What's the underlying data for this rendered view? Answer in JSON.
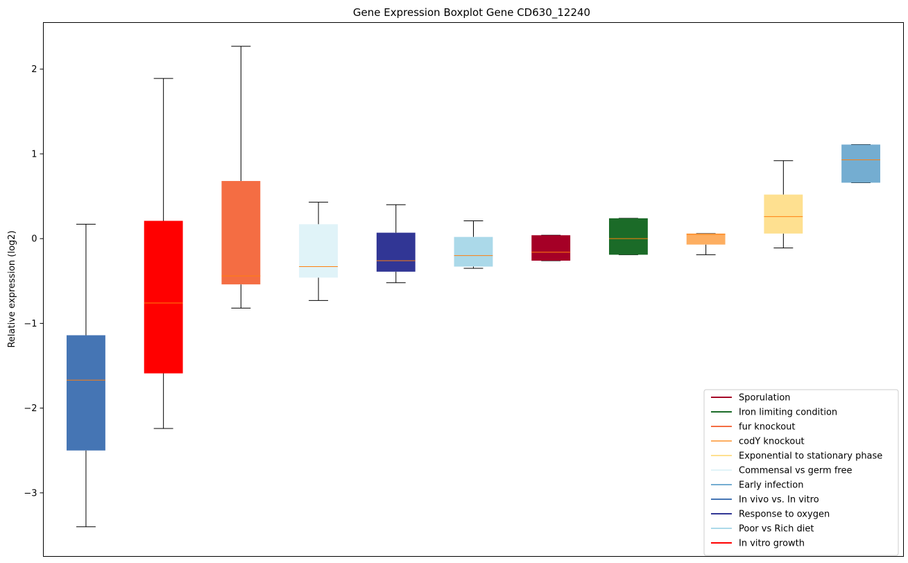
{
  "chart_data": {
    "type": "boxplot",
    "title": "Gene Expression Boxplot Gene CD630_12240",
    "xlabel": "",
    "ylabel": "Relative expression (log2)",
    "ylim": [
      -3.75,
      2.55
    ],
    "yticks": [
      -3,
      -2,
      -1,
      0,
      1,
      2
    ],
    "ytick_labels": [
      "−3",
      "−2",
      "−1",
      "0",
      "1",
      "2"
    ],
    "grid": false,
    "legend_position": "lower-right",
    "boxes": [
      {
        "color": "#4575b4",
        "whisker_low": -3.4,
        "q1": -2.5,
        "median": -1.67,
        "q3": -1.14,
        "whisker_high": 0.17
      },
      {
        "color": "#ff0000",
        "whisker_low": -2.24,
        "q1": -1.59,
        "median": -0.76,
        "q3": 0.21,
        "whisker_high": 1.89
      },
      {
        "color": "#f46d43",
        "whisker_low": -0.82,
        "q1": -0.54,
        "median": -0.44,
        "q3": 0.68,
        "whisker_high": 2.27
      },
      {
        "color": "#e0f3f8",
        "whisker_low": -0.73,
        "q1": -0.46,
        "median": -0.33,
        "q3": 0.17,
        "whisker_high": 0.43
      },
      {
        "color": "#313695",
        "whisker_low": -0.52,
        "q1": -0.39,
        "median": -0.26,
        "q3": 0.07,
        "whisker_high": 0.4
      },
      {
        "color": "#abd9e9",
        "whisker_low": -0.35,
        "q1": -0.33,
        "median": -0.2,
        "q3": 0.02,
        "whisker_high": 0.21
      },
      {
        "color": "#a50026",
        "whisker_low": -0.26,
        "q1": -0.26,
        "median": -0.16,
        "q3": 0.04,
        "whisker_high": 0.04
      },
      {
        "color": "#1b6b28",
        "whisker_low": -0.19,
        "q1": -0.19,
        "median": 0.0,
        "q3": 0.24,
        "whisker_high": 0.24
      },
      {
        "color": "#fdae61",
        "whisker_low": -0.19,
        "q1": -0.07,
        "median": 0.05,
        "q3": 0.06,
        "whisker_high": 0.06
      },
      {
        "color": "#fee090",
        "whisker_low": -0.11,
        "q1": 0.06,
        "median": 0.26,
        "q3": 0.52,
        "whisker_high": 0.92
      },
      {
        "color": "#74add1",
        "whisker_low": 0.66,
        "q1": 0.66,
        "median": 0.93,
        "q3": 1.11,
        "whisker_high": 1.11
      }
    ],
    "median_color": "#ff7f0e",
    "legend": [
      {
        "label": "Sporulation",
        "color": "#a50026"
      },
      {
        "label": "Iron limiting condition",
        "color": "#1b6b28"
      },
      {
        "label": "fur knockout",
        "color": "#f46d43"
      },
      {
        "label": "codY knockout",
        "color": "#fdae61"
      },
      {
        "label": "Exponential to stationary phase",
        "color": "#fee090"
      },
      {
        "label": "Commensal vs germ free",
        "color": "#e0f3f8"
      },
      {
        "label": "Early infection",
        "color": "#74add1"
      },
      {
        "label": "In vivo vs. In vitro",
        "color": "#4575b4"
      },
      {
        "label": "Response to oxygen",
        "color": "#313695"
      },
      {
        "label": "Poor vs Rich diet",
        "color": "#abd9e9"
      },
      {
        "label": "In vitro growth",
        "color": "#ff0000"
      }
    ]
  }
}
